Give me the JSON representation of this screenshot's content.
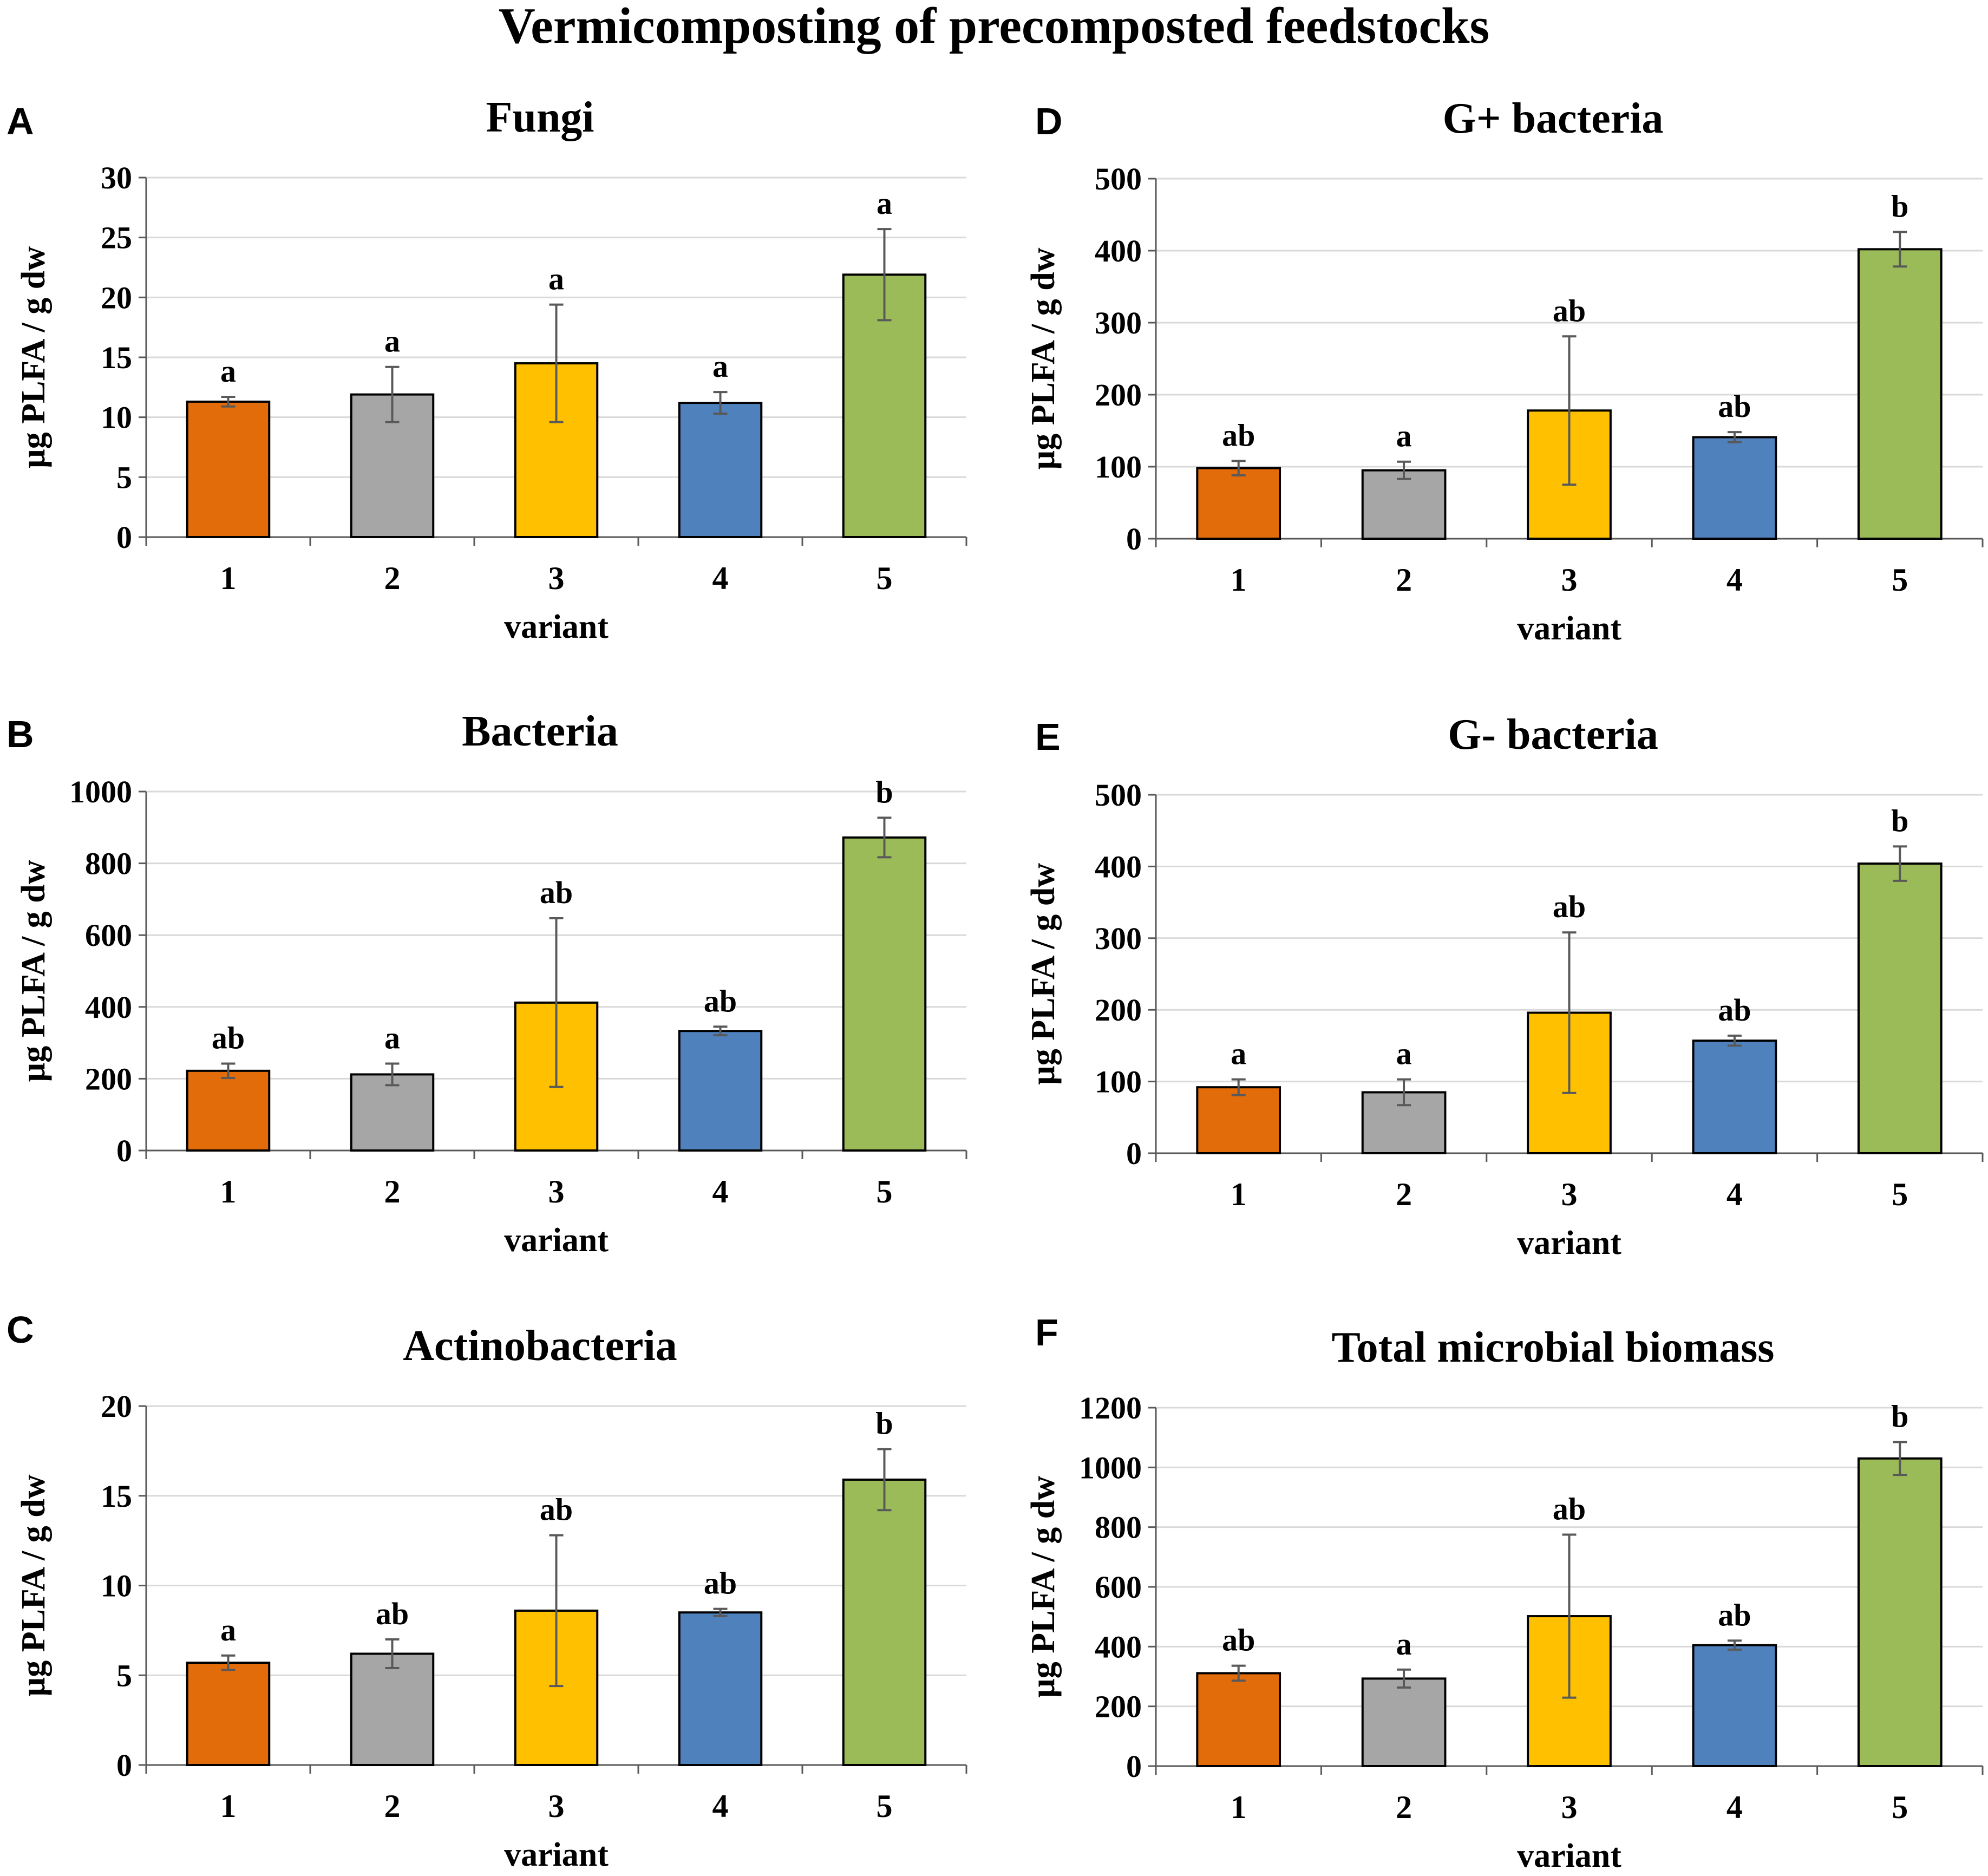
{
  "figure_title": "Vermicomposting of precomposted feedstocks",
  "colors": {
    "variant_fills": [
      "#E36C0A",
      "#A6A6A6",
      "#FFC000",
      "#4F81BD",
      "#9BBB59"
    ],
    "bar_stroke": "#000000",
    "error_bar": "#595959",
    "gridline": "#D9D9D9",
    "axis": "#595959"
  },
  "chart_data": [
    {
      "panel": "A",
      "type": "bar",
      "title": "Fungi",
      "xlabel": "variant",
      "ylabel": "µg PLFA / g dw",
      "categories": [
        "1",
        "2",
        "3",
        "4",
        "5"
      ],
      "values": [
        11.3,
        11.9,
        14.5,
        11.2,
        21.9
      ],
      "errors": [
        0.4,
        2.3,
        4.9,
        0.9,
        3.8
      ],
      "significance": [
        "a",
        "a",
        "a",
        "a",
        "a"
      ],
      "ylim": [
        0,
        30
      ],
      "yticks": [
        0,
        5,
        10,
        15,
        20,
        25,
        30
      ],
      "grid": true
    },
    {
      "panel": "B",
      "type": "bar",
      "title": "Bacteria",
      "xlabel": "variant",
      "ylabel": "µg PLFA / g dw",
      "categories": [
        "1",
        "2",
        "3",
        "4",
        "5"
      ],
      "values": [
        222,
        212,
        412,
        333,
        872
      ],
      "errors": [
        20,
        30,
        235,
        12,
        55
      ],
      "significance": [
        "ab",
        "a",
        "ab",
        "ab",
        "b"
      ],
      "ylim": [
        0,
        1000
      ],
      "yticks": [
        0,
        200,
        400,
        600,
        800,
        1000
      ],
      "grid": true
    },
    {
      "panel": "C",
      "type": "bar",
      "title": "Actinobacteria",
      "xlabel": "variant",
      "ylabel": "µg PLFA / g dw",
      "categories": [
        "1",
        "2",
        "3",
        "4",
        "5"
      ],
      "values": [
        5.7,
        6.2,
        8.6,
        8.5,
        15.9
      ],
      "errors": [
        0.4,
        0.8,
        4.2,
        0.2,
        1.7
      ],
      "significance": [
        "a",
        "ab",
        "ab",
        "ab",
        "b"
      ],
      "ylim": [
        0,
        20
      ],
      "yticks": [
        0,
        5,
        10,
        15,
        20
      ],
      "grid": true
    },
    {
      "panel": "D",
      "type": "bar",
      "title": "G+ bacteria",
      "xlabel": "variant",
      "ylabel": "µg PLFA / g dw",
      "categories": [
        "1",
        "2",
        "3",
        "4",
        "5"
      ],
      "values": [
        98,
        95,
        178,
        141,
        402
      ],
      "errors": [
        10,
        12,
        103,
        7,
        24
      ],
      "significance": [
        "ab",
        "a",
        "ab",
        "ab",
        "b"
      ],
      "ylim": [
        0,
        500
      ],
      "yticks": [
        0,
        100,
        200,
        300,
        400,
        500
      ],
      "grid": true
    },
    {
      "panel": "E",
      "type": "bar",
      "title": "G- bacteria",
      "xlabel": "variant",
      "ylabel": "µg PLFA / g dw",
      "categories": [
        "1",
        "2",
        "3",
        "4",
        "5"
      ],
      "values": [
        92,
        85,
        196,
        157,
        404
      ],
      "errors": [
        11,
        18,
        112,
        7,
        24
      ],
      "significance": [
        "a",
        "a",
        "ab",
        "ab",
        "b"
      ],
      "ylim": [
        0,
        500
      ],
      "yticks": [
        0,
        100,
        200,
        300,
        400,
        500
      ],
      "grid": true
    },
    {
      "panel": "F",
      "type": "bar",
      "title": "Total microbial biomass",
      "xlabel": "variant",
      "ylabel": "µg PLFA / g dw",
      "categories": [
        "1",
        "2",
        "3",
        "4",
        "5"
      ],
      "values": [
        311,
        293,
        502,
        405,
        1030
      ],
      "errors": [
        25,
        30,
        273,
        15,
        55
      ],
      "significance": [
        "ab",
        "a",
        "ab",
        "ab",
        "b"
      ],
      "ylim": [
        0,
        1200
      ],
      "yticks": [
        0,
        200,
        400,
        600,
        800,
        1000,
        1200
      ],
      "grid": true
    }
  ]
}
